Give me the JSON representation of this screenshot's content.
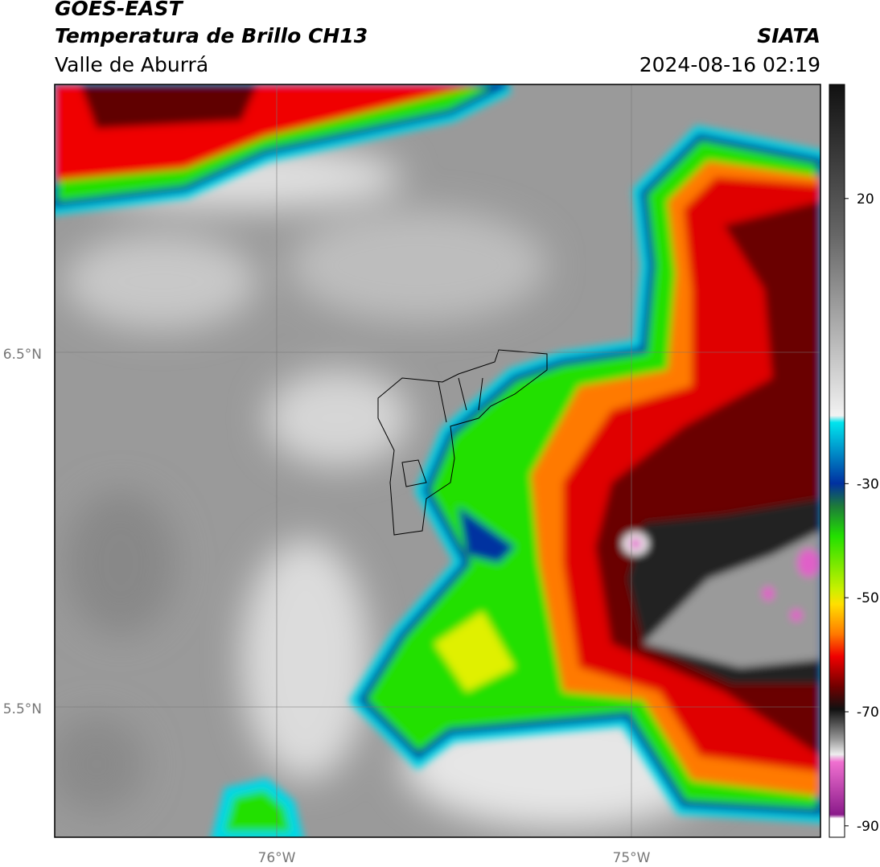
{
  "header": {
    "satellite": "GOES-EAST",
    "product": "Temperatura de Brillo CH13",
    "region": "Valle de Aburrá",
    "agency": "SIATA",
    "datetime": "2024-08-16 02:19"
  },
  "map": {
    "lat_labels": [
      "6.5°N",
      "5.5°N"
    ],
    "lon_labels": [
      "76°W",
      "75°W"
    ]
  },
  "colorbar": {
    "range": [
      -92,
      40
    ],
    "ticks": [
      20,
      -30,
      -50,
      -70,
      -90
    ]
  }
}
